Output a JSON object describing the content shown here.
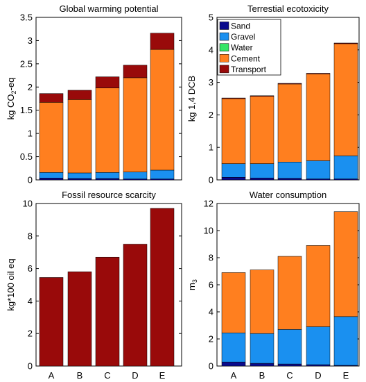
{
  "colors": {
    "Sand": "#0a0a8c",
    "Gravel": "#1a90f0",
    "Water": "#33e666",
    "Cement": "#ff7f1f",
    "Transport": "#990a0a"
  },
  "chart_data": [
    {
      "type": "bar",
      "stacked": true,
      "title": "Global warming potential",
      "ylabel": "kg CO2-eq",
      "ylabel_parts": [
        "kg CO",
        "2",
        "-eq"
      ],
      "ylim": [
        0,
        3.5
      ],
      "yticks": [
        "0",
        "0.5",
        "1",
        "1.5",
        "2",
        "2.5",
        "3",
        "3.5"
      ],
      "categories": [
        "A",
        "B",
        "C",
        "D",
        "E"
      ],
      "show_xticklabels": false,
      "series": [
        {
          "name": "Sand",
          "values": [
            0.04,
            0.03,
            0.03,
            0.02,
            0.02
          ]
        },
        {
          "name": "Gravel",
          "values": [
            0.12,
            0.12,
            0.13,
            0.15,
            0.19
          ]
        },
        {
          "name": "Water",
          "values": [
            0,
            0,
            0,
            0,
            0
          ]
        },
        {
          "name": "Cement",
          "values": [
            1.51,
            1.58,
            1.82,
            2.03,
            2.6
          ]
        },
        {
          "name": "Transport",
          "values": [
            0.19,
            0.2,
            0.24,
            0.27,
            0.35
          ]
        }
      ]
    },
    {
      "type": "bar",
      "stacked": true,
      "title": "Terrestial ecotoxicity",
      "ylabel": "kg 1,4 DCB",
      "ylim": [
        0,
        5
      ],
      "yticks": [
        "0",
        "1",
        "2",
        "3",
        "4",
        "5"
      ],
      "categories": [
        "A",
        "B",
        "C",
        "D",
        "E"
      ],
      "show_xticklabels": false,
      "legend": "top-left",
      "series": [
        {
          "name": "Sand",
          "values": [
            0.08,
            0.06,
            0.05,
            0.03,
            0.03
          ]
        },
        {
          "name": "Gravel",
          "values": [
            0.42,
            0.44,
            0.5,
            0.56,
            0.71
          ]
        },
        {
          "name": "Water",
          "values": [
            0,
            0,
            0,
            0,
            0
          ]
        },
        {
          "name": "Cement",
          "values": [
            2.0,
            2.07,
            2.4,
            2.67,
            3.45
          ]
        },
        {
          "name": "Transport",
          "values": [
            0.02,
            0.02,
            0.02,
            0.02,
            0.02
          ]
        }
      ]
    },
    {
      "type": "bar",
      "stacked": true,
      "title": "Fossil resource scarcity",
      "ylabel": "kg*100 oil eq",
      "ylim": [
        0,
        10
      ],
      "yticks": [
        "0",
        "2",
        "4",
        "6",
        "8",
        "10"
      ],
      "categories": [
        "A",
        "B",
        "C",
        "D",
        "E"
      ],
      "show_xticklabels": true,
      "series": [
        {
          "name": "Transport",
          "values": [
            5.45,
            5.8,
            6.7,
            7.5,
            9.7
          ]
        }
      ]
    },
    {
      "type": "bar",
      "stacked": true,
      "title": "Water consumption",
      "ylabel": "m3",
      "ylabel_parts": [
        "m",
        "3",
        ""
      ],
      "ylim": [
        0,
        12
      ],
      "yticks": [
        "0",
        "2",
        "4",
        "6",
        "8",
        "10",
        "12"
      ],
      "categories": [
        "A",
        "B",
        "C",
        "D",
        "E"
      ],
      "show_xticklabels": true,
      "series": [
        {
          "name": "Sand",
          "values": [
            0.3,
            0.2,
            0.15,
            0.1,
            0.05
          ]
        },
        {
          "name": "Gravel",
          "values": [
            2.15,
            2.2,
            2.55,
            2.8,
            3.6
          ]
        },
        {
          "name": "Water",
          "values": [
            0,
            0,
            0,
            0,
            0
          ]
        },
        {
          "name": "Cement",
          "values": [
            4.45,
            4.7,
            5.4,
            6.0,
            7.75
          ]
        }
      ]
    }
  ]
}
